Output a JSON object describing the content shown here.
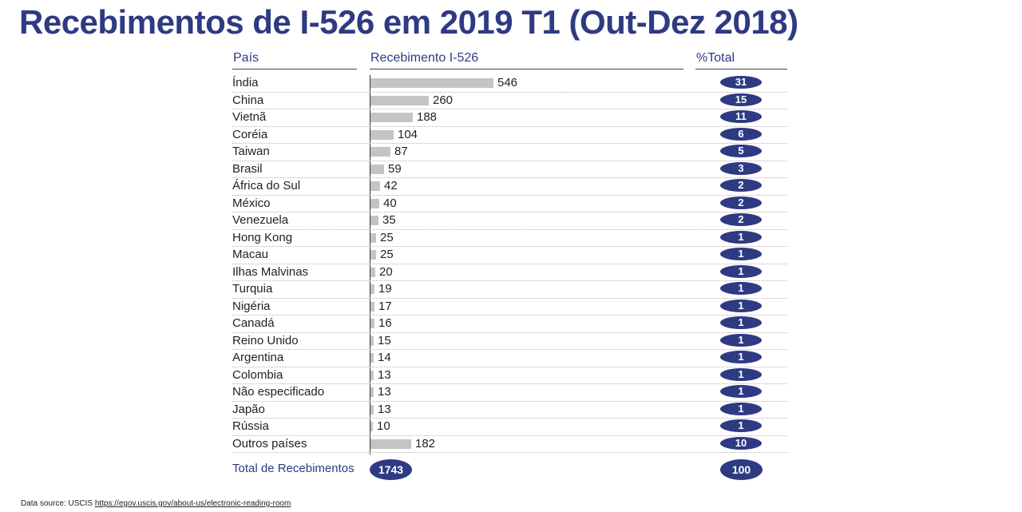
{
  "title": "Recebimentos de I-526 em 2019 T1 (Out-Dez 2018)",
  "colors": {
    "accent": "#2e3a82",
    "bar": "#c4c4c4"
  },
  "headers": {
    "country": "País",
    "receipts": "Recebimento I-526",
    "percent": "%Total"
  },
  "chart_data": {
    "type": "bar",
    "orientation": "horizontal",
    "categories": [
      "Índia",
      "China",
      "Vietnã",
      "Coréia",
      "Taiwan",
      "Brasil",
      "África do Sul",
      "México",
      "Venezuela",
      "Hong Kong",
      "Macau",
      "Ilhas Malvinas",
      "Turquia",
      "Nigéria",
      "Canadá",
      "Reino Unido",
      "Argentina",
      "Colombia",
      "Não especificado",
      "Japão",
      "Rússia",
      "Outros países"
    ],
    "values": [
      546,
      260,
      188,
      104,
      87,
      59,
      42,
      40,
      35,
      25,
      25,
      20,
      19,
      17,
      16,
      15,
      14,
      13,
      13,
      13,
      10,
      182
    ],
    "percent_total": [
      31,
      15,
      11,
      6,
      5,
      3,
      2,
      2,
      2,
      1,
      1,
      1,
      1,
      1,
      1,
      1,
      1,
      1,
      1,
      1,
      1,
      10
    ],
    "xlim": [
      0,
      546
    ],
    "grid": false,
    "legend": "none"
  },
  "total": {
    "label": "Total de Recebimentos",
    "value": "1743",
    "percent": "100"
  },
  "source": {
    "prefix": "Data source: USCIS ",
    "link": "https://egov.uscis.gov/about-us/electronic-reading-room"
  }
}
